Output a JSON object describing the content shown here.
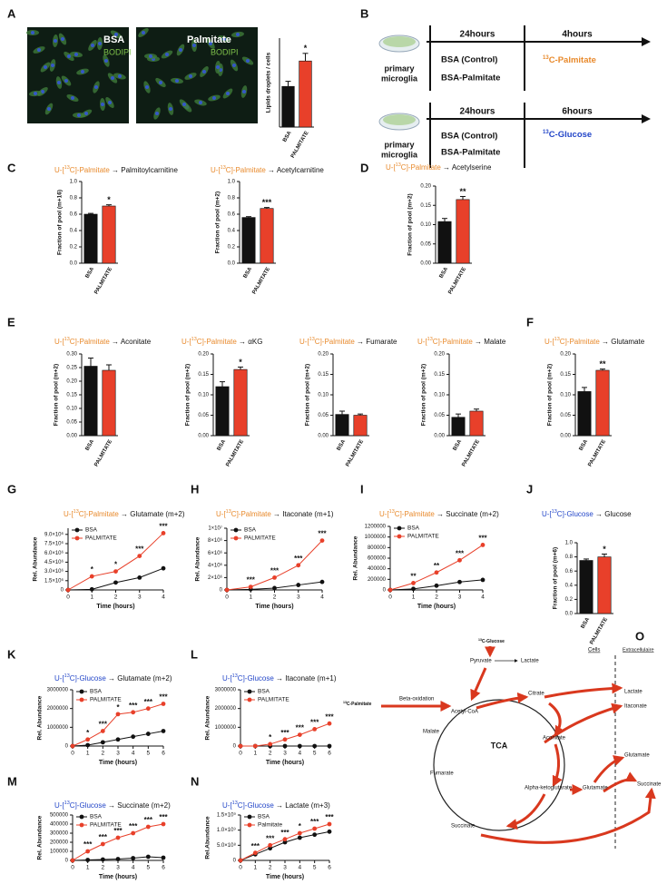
{
  "panel_labels": [
    "A",
    "B",
    "C",
    "D",
    "E",
    "F",
    "G",
    "H",
    "I",
    "J",
    "K",
    "L",
    "M",
    "N",
    "O"
  ],
  "images": [
    {
      "label": "BSA",
      "stain": "BODIPI"
    },
    {
      "label": "Palmitate",
      "stain": "BODIPI"
    }
  ],
  "scheme_b": [
    {
      "phase1": "24hours",
      "phase2": "4hours",
      "cells": [
        "primary",
        "microglia"
      ],
      "conditions": [
        "BSA (Control)",
        "BSA-Palmitate"
      ],
      "tracer": [
        "13",
        "C-Palmitate"
      ],
      "tracer_color": "#e8892b"
    },
    {
      "phase1": "24hours",
      "phase2": "6hours",
      "cells": [
        "primary",
        "microglia"
      ],
      "conditions": [
        "BSA (Control)",
        "BSA-Palmitate"
      ],
      "tracer": [
        "13",
        "C-Glucose"
      ],
      "tracer_color": "#2346c8"
    }
  ],
  "diagram_o": {
    "glucose": [
      "13",
      "C-Glucose"
    ],
    "palmitate": [
      "13",
      "C-Palmitate"
    ],
    "nodes": [
      "Pyruvate",
      "Lactate",
      "Cells",
      "Extracellulaire",
      "Beta-oxidation",
      "Acetyl-CoA",
      "Citrate",
      "Malate",
      "TCA",
      "Aconitate",
      "Fumarate",
      "Alpha-ketoglutarate",
      "Glutamate",
      "Succinate",
      "Lactate",
      "Itaconate",
      "Glutamate",
      "Succinate"
    ]
  },
  "chart_data": [
    {
      "type": "bar",
      "y_label": "Lipids droplets / cells",
      "categories": [
        "BSA",
        "PALMITATE"
      ],
      "values": [
        16,
        26
      ],
      "errors": [
        2,
        3
      ],
      "colors": [
        "#111111",
        "#e8402a"
      ],
      "ylim": [
        0,
        35
      ],
      "significance": "*"
    },
    {
      "type": "bar",
      "title": [
        "U-[",
        "13",
        "C]-Palmitate",
        " → Palmitoylcarnitine"
      ],
      "title_color": "#e8892b",
      "y_label": "Fraction of pool (m+16)",
      "categories": [
        "BSA",
        "PALMITATE"
      ],
      "values": [
        0.6,
        0.7
      ],
      "errors": [
        0.01,
        0.015
      ],
      "colors": [
        "#111111",
        "#e8402a"
      ],
      "ylim": [
        0,
        1
      ],
      "yticks": [
        {
          "value": 0,
          "label": "0.0"
        },
        0.2,
        0.4,
        0.6,
        0.8,
        {
          "value": 1,
          "label": "1.0"
        }
      ],
      "significance": "*"
    },
    {
      "type": "bar",
      "title": [
        "U-[",
        "13",
        "C]-Palmitate",
        " → Acetylcarnitine"
      ],
      "title_color": "#e8892b",
      "y_label": "Fraction of pool (m+2)",
      "categories": [
        "BSA",
        "PALMITATE"
      ],
      "values": [
        0.56,
        0.67
      ],
      "errors": [
        0.01,
        0.012
      ],
      "colors": [
        "#111111",
        "#e8402a"
      ],
      "ylim": [
        0,
        1
      ],
      "yticks": [
        {
          "value": 0,
          "label": "0.0"
        },
        0.2,
        0.4,
        0.6,
        0.8,
        {
          "value": 1,
          "label": "1.0"
        }
      ],
      "significance": "***"
    },
    {
      "type": "bar",
      "title": [
        "U-[",
        "13",
        "C]-Palmitate",
        " → Acetylserine"
      ],
      "title_color": "#e8892b",
      "y_label": "Fraction of pool (m+2)",
      "categories": [
        "BSA",
        "PALMITATE"
      ],
      "values": [
        0.108,
        0.165
      ],
      "errors": [
        0.008,
        0.008
      ],
      "colors": [
        "#111111",
        "#e8402a"
      ],
      "ylim": [
        0,
        0.2
      ],
      "yticks": [
        {
          "value": 0,
          "label": "0.00"
        },
        0.05,
        {
          "value": 0.1,
          "label": "0.10"
        },
        0.15,
        {
          "value": 0.2,
          "label": "0.20"
        }
      ],
      "significance": "**"
    },
    {
      "type": "bar",
      "title": [
        "U-[",
        "13",
        "C]-Palmitate",
        " → Aconitate"
      ],
      "title_color": "#e8892b",
      "y_label": "Fraction of pool (m+2)",
      "categories": [
        "BSA",
        "PALMITATE"
      ],
      "values": [
        0.255,
        0.24
      ],
      "errors": [
        0.03,
        0.02
      ],
      "colors": [
        "#111111",
        "#e8402a"
      ],
      "ylim": [
        0,
        0.3
      ],
      "yticks": [
        {
          "value": 0,
          "label": "0.00"
        },
        0.05,
        {
          "value": 0.1,
          "label": "0.10"
        },
        0.15,
        {
          "value": 0.2,
          "label": "0.20"
        },
        0.25,
        {
          "value": 0.3,
          "label": "0.30"
        }
      ]
    },
    {
      "type": "bar",
      "title": [
        "U-[",
        "13",
        "C]-Palmitate",
        " → αKG"
      ],
      "title_color": "#e8892b",
      "y_label": "Fraction of pool (m+2)",
      "categories": [
        "BSA",
        "PALMITATE"
      ],
      "values": [
        0.12,
        0.162
      ],
      "errors": [
        0.012,
        0.006
      ],
      "colors": [
        "#111111",
        "#e8402a"
      ],
      "ylim": [
        0,
        0.2
      ],
      "yticks": [
        {
          "value": 0,
          "label": "0.00"
        },
        0.05,
        {
          "value": 0.1,
          "label": "0.10"
        },
        0.15,
        {
          "value": 0.2,
          "label": "0.20"
        }
      ],
      "significance": "*"
    },
    {
      "type": "bar",
      "title": [
        "U-[",
        "13",
        "C]-Palmitate",
        " → Fumarate"
      ],
      "title_color": "#e8892b",
      "y_label": "Fraction of pool (m+2)",
      "categories": [
        "BSA",
        "PALMITATE"
      ],
      "values": [
        0.052,
        0.05
      ],
      "errors": [
        0.008,
        0.003
      ],
      "colors": [
        "#111111",
        "#e8402a"
      ],
      "ylim": [
        0,
        0.2
      ],
      "yticks": [
        {
          "value": 0,
          "label": "0.00"
        },
        0.05,
        {
          "value": 0.1,
          "label": "0.10"
        },
        0.15,
        {
          "value": 0.2,
          "label": "0.20"
        }
      ]
    },
    {
      "type": "bar",
      "title": [
        "U-[",
        "13",
        "C]-Palmitate",
        " → Malate"
      ],
      "title_color": "#e8892b",
      "y_label": "Fraction of pool (m+2)",
      "categories": [
        "BSA",
        "PALMITATE"
      ],
      "values": [
        0.045,
        0.06
      ],
      "errors": [
        0.008,
        0.005
      ],
      "colors": [
        "#111111",
        "#e8402a"
      ],
      "ylim": [
        0,
        0.2
      ],
      "yticks": [
        {
          "value": 0,
          "label": "0.00"
        },
        0.05,
        {
          "value": 0.1,
          "label": "0.10"
        },
        0.15,
        {
          "value": 0.2,
          "label": "0.20"
        }
      ]
    },
    {
      "type": "bar",
      "title": [
        "U-[",
        "13",
        "C]-Palmitate",
        " → Glutamate"
      ],
      "title_color": "#e8892b",
      "y_label": "Fraction of pool (m+2)",
      "categories": [
        "BSA",
        "PALMITATE"
      ],
      "values": [
        0.108,
        0.16
      ],
      "errors": [
        0.01,
        0.003
      ],
      "colors": [
        "#111111",
        "#e8402a"
      ],
      "ylim": [
        0,
        0.2
      ],
      "yticks": [
        {
          "value": 0,
          "label": "0.00"
        },
        0.05,
        {
          "value": 0.1,
          "label": "0.10"
        },
        0.15,
        {
          "value": 0.2,
          "label": "0.20"
        }
      ],
      "significance": "**"
    },
    {
      "type": "line",
      "title": [
        "U-[",
        "13",
        "C]-Palmitate",
        " → Glutamate (m+2)"
      ],
      "title_color": "#e8892b",
      "y_label": "Rel. Abundance",
      "x_label": "Time (hours)",
      "x": [
        0,
        1,
        2,
        3,
        4
      ],
      "xlim": [
        0,
        4
      ],
      "xticks": [
        0,
        1,
        2,
        3,
        4
      ],
      "ylim": [
        0,
        10000000
      ],
      "yticks": [
        0,
        {
          "value": 1500000,
          "label": "1.5×10⁶"
        },
        {
          "value": 3000000,
          "label": "3.0×10⁶"
        },
        {
          "value": 4500000,
          "label": "4.5×10⁶"
        },
        {
          "value": 6000000,
          "label": "6.0×10⁶"
        },
        {
          "value": 7500000,
          "label": "7.5×10⁶"
        },
        {
          "value": 9000000,
          "label": "9.0×10⁶"
        }
      ],
      "series": [
        {
          "name": "BSA",
          "color": "#111111",
          "values": [
            0,
            100000,
            1200000,
            2000000,
            3500000
          ]
        },
        {
          "name": "PALMITATE",
          "color": "#e8402a",
          "values": [
            0,
            2200000,
            3000000,
            5500000,
            9200000
          ]
        }
      ],
      "annotations": [
        {
          "x": 1,
          "text": "*"
        },
        {
          "x": 2,
          "text": "*"
        },
        {
          "x": 3,
          "text": "***"
        },
        {
          "x": 4,
          "text": "***"
        }
      ]
    },
    {
      "type": "line",
      "title": [
        "U-[",
        "13",
        "C]-Palmitate",
        " → Itaconate (m+1)"
      ],
      "title_color": "#e8892b",
      "y_label": "Rel. Abundance",
      "x_label": "Time (hours)",
      "x": [
        0,
        1,
        2,
        3,
        4
      ],
      "xlim": [
        0,
        4
      ],
      "xticks": [
        0,
        1,
        2,
        3,
        4
      ],
      "ylim": [
        0,
        10000000
      ],
      "yticks": [
        0,
        {
          "value": 2000000,
          "label": "2×10⁶"
        },
        {
          "value": 4000000,
          "label": "4×10⁶"
        },
        {
          "value": 6000000,
          "label": "6×10⁶"
        },
        {
          "value": 8000000,
          "label": "8×10⁶"
        },
        {
          "value": 10000000,
          "label": "1×10⁷"
        }
      ],
      "series": [
        {
          "name": "BSA",
          "color": "#111111",
          "values": [
            0,
            100000,
            300000,
            800000,
            1300000
          ]
        },
        {
          "name": "PALMITATE",
          "color": "#e8402a",
          "values": [
            0,
            500000,
            2000000,
            4000000,
            8000000
          ]
        }
      ],
      "annotations": [
        {
          "x": 1,
          "text": "***"
        },
        {
          "x": 2,
          "text": "***"
        },
        {
          "x": 3,
          "text": "***"
        },
        {
          "x": 4,
          "text": "***"
        }
      ]
    },
    {
      "type": "line",
      "title": [
        "U-[",
        "13",
        "C]-Palmitate",
        " → Succinate (m+2)"
      ],
      "title_color": "#e8892b",
      "y_label": "Rel. Abundance",
      "x_label": "Time (hours)",
      "x": [
        0,
        1,
        2,
        3,
        4
      ],
      "xlim": [
        0,
        4
      ],
      "xticks": [
        0,
        1,
        2,
        3,
        4
      ],
      "ylim": [
        0,
        1200000
      ],
      "yticks": [
        0,
        200000,
        400000,
        600000,
        800000,
        1000000,
        1200000
      ],
      "series": [
        {
          "name": "BSA",
          "color": "#111111",
          "values": [
            0,
            20000,
            80000,
            150000,
            190000
          ]
        },
        {
          "name": "PALMITATE",
          "color": "#e8402a",
          "values": [
            0,
            130000,
            330000,
            560000,
            850000
          ]
        }
      ],
      "annotations": [
        {
          "x": 1,
          "text": "**"
        },
        {
          "x": 2,
          "text": "**"
        },
        {
          "x": 3,
          "text": "***"
        },
        {
          "x": 4,
          "text": "***"
        }
      ]
    },
    {
      "type": "bar",
      "title": [
        "U-[",
        "13",
        "C]-Glucose",
        " → Glucose"
      ],
      "title_color": "#2346c8",
      "y_label": "Fraction of pool (m+6)",
      "categories": [
        "BSA",
        "PALMITATE"
      ],
      "values": [
        0.75,
        0.8
      ],
      "errors": [
        0.02,
        0.04
      ],
      "colors": [
        "#111111",
        "#e8402a"
      ],
      "ylim": [
        0,
        1
      ],
      "yticks": [
        {
          "value": 0,
          "label": "0.0"
        },
        0.2,
        0.4,
        0.6,
        0.8,
        {
          "value": 1,
          "label": "1.0"
        }
      ],
      "significance": "*"
    },
    {
      "type": "line",
      "title": [
        "U-[",
        "13",
        "C]-Glucose",
        " → Glutamate (m+2)"
      ],
      "title_color": "#2346c8",
      "y_label": "Rel. Abundance",
      "x_label": "Time (hours)",
      "x": [
        0,
        1,
        2,
        3,
        4,
        5,
        6
      ],
      "xlim": [
        0,
        6
      ],
      "xticks": [
        0,
        1,
        2,
        3,
        4,
        5,
        6
      ],
      "ylim": [
        0,
        3000000
      ],
      "yticks": [
        0,
        1000000,
        2000000,
        3000000
      ],
      "series": [
        {
          "name": "BSA",
          "color": "#111111",
          "values": [
            0,
            50000,
            200000,
            350000,
            500000,
            650000,
            800000
          ]
        },
        {
          "name": "PALMITATE",
          "color": "#e8402a",
          "values": [
            0,
            350000,
            800000,
            1700000,
            1800000,
            2000000,
            2250000
          ]
        }
      ],
      "annotations": [
        {
          "x": 1,
          "text": "*"
        },
        {
          "x": 2,
          "text": "***"
        },
        {
          "x": 3,
          "text": "*"
        },
        {
          "x": 4,
          "text": "***"
        },
        {
          "x": 5,
          "text": "***"
        },
        {
          "x": 6,
          "text": "***"
        }
      ]
    },
    {
      "type": "line",
      "title": [
        "U-[",
        "13",
        "C]-Glucose",
        " → Itaconate (m+1)"
      ],
      "title_color": "#2346c8",
      "y_label": "Rel. Abundance",
      "x_label": "Time (hours)",
      "x": [
        0,
        1,
        2,
        3,
        4,
        5,
        6
      ],
      "xlim": [
        0,
        6
      ],
      "xticks": [
        0,
        1,
        2,
        3,
        4,
        5,
        6
      ],
      "ylim": [
        0,
        3000000
      ],
      "yticks": [
        0,
        1000000,
        2000000,
        3000000
      ],
      "series": [
        {
          "name": "BSA",
          "color": "#111111",
          "values": [
            0,
            0,
            0,
            0,
            0,
            0,
            0
          ]
        },
        {
          "name": "PALMITATE",
          "color": "#e8402a",
          "values": [
            0,
            0,
            100000,
            350000,
            600000,
            900000,
            1200000
          ]
        }
      ],
      "annotations": [
        {
          "x": 2,
          "text": "*"
        },
        {
          "x": 3,
          "text": "***"
        },
        {
          "x": 4,
          "text": "***"
        },
        {
          "x": 5,
          "text": "***"
        },
        {
          "x": 6,
          "text": "***"
        }
      ]
    },
    {
      "type": "line",
      "title": [
        "U-[",
        "13",
        "C]-Glucose",
        " → Succinate (m+2)"
      ],
      "title_color": "#2346c8",
      "y_label": "Rel. Abundance",
      "x_label": "Time (hours)",
      "x": [
        0,
        1,
        2,
        3,
        4,
        5,
        6
      ],
      "xlim": [
        0,
        6
      ],
      "xticks": [
        0,
        1,
        2,
        3,
        4,
        5,
        6
      ],
      "ylim": [
        0,
        500000
      ],
      "yticks": [
        0,
        100000,
        200000,
        300000,
        400000,
        500000
      ],
      "series": [
        {
          "name": "BSA",
          "color": "#111111",
          "values": [
            0,
            5000,
            10000,
            15000,
            25000,
            40000,
            30000
          ]
        },
        {
          "name": "PALMITATE",
          "color": "#e8402a",
          "values": [
            0,
            100000,
            180000,
            250000,
            300000,
            370000,
            400000
          ]
        }
      ],
      "annotations": [
        {
          "x": 1,
          "text": "***"
        },
        {
          "x": 2,
          "text": "***"
        },
        {
          "x": 3,
          "text": "***"
        },
        {
          "x": 4,
          "text": "***"
        },
        {
          "x": 5,
          "text": "***"
        },
        {
          "x": 6,
          "text": "***"
        }
      ]
    },
    {
      "type": "line",
      "title": [
        "U-[",
        "13",
        "C]-Glucose",
        " → Lactate (m+3)"
      ],
      "title_color": "#2346c8",
      "y_label": "Rel.Abundance",
      "x_label": "Time (hours)",
      "x": [
        0,
        1,
        2,
        3,
        4,
        5,
        6
      ],
      "xlim": [
        0,
        6
      ],
      "xticks": [
        0,
        1,
        2,
        3,
        4,
        5,
        6
      ],
      "ylim": [
        0,
        1500000000
      ],
      "yticks": [
        0,
        {
          "value": 500000000,
          "label": "5.0×10⁸"
        },
        {
          "value": 1000000000,
          "label": "1.0×10⁹"
        },
        {
          "value": 1500000000,
          "label": "1.5×10⁹"
        }
      ],
      "series": [
        {
          "name": "BSA",
          "color": "#111111",
          "values": [
            0,
            200000000,
            400000000,
            600000000,
            750000000,
            850000000,
            950000000
          ]
        },
        {
          "name": "Palmitate",
          "color": "#e8402a",
          "values": [
            0,
            250000000,
            500000000,
            700000000,
            900000000,
            1050000000,
            1200000000
          ]
        }
      ],
      "annotations": [
        {
          "x": 1,
          "text": "***"
        },
        {
          "x": 2,
          "text": "***"
        },
        {
          "x": 3,
          "text": "***"
        },
        {
          "x": 4,
          "text": "*"
        },
        {
          "x": 5,
          "text": "***"
        },
        {
          "x": 6,
          "text": "***"
        }
      ]
    }
  ]
}
